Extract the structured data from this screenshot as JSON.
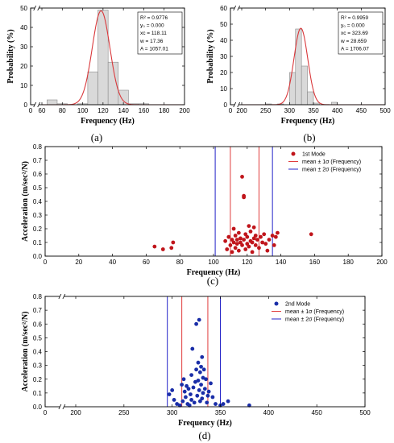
{
  "chart_data": [
    {
      "id": "a",
      "type": "bar",
      "panel_label": "(a)",
      "xlabel": "Frequency (Hz)",
      "ylabel": "Probability (%)",
      "xlim": [
        0,
        200
      ],
      "ylim": [
        0,
        50
      ],
      "xticks": [
        0,
        60,
        80,
        100,
        120,
        140,
        160,
        180,
        200
      ],
      "yticks": [
        0,
        10,
        20,
        30,
        40,
        50
      ],
      "axis_break": true,
      "bin_width": 10,
      "bins": [
        {
          "x": 70,
          "value": 2.5
        },
        {
          "x": 80,
          "value": 0.5
        },
        {
          "x": 100,
          "value": 0.5
        },
        {
          "x": 110,
          "value": 17
        },
        {
          "x": 120,
          "value": 49
        },
        {
          "x": 130,
          "value": 22
        },
        {
          "x": 140,
          "value": 7.5
        },
        {
          "x": 150,
          "value": 0.5
        },
        {
          "x": 160,
          "value": 0.5
        }
      ],
      "fit": {
        "y0": 0,
        "xc": 118.11,
        "w": 17.36,
        "A": 1057.01
      },
      "stats": [
        "R² = 0.9776",
        "y₀ = 0.000",
        "xc = 118.11",
        "w = 17.36",
        "A = 1057.01"
      ]
    },
    {
      "id": "b",
      "type": "bar",
      "panel_label": "(b)",
      "xlabel": "Frequency (Hz)",
      "ylabel": "Probability (%)",
      "xlim": [
        0,
        500
      ],
      "ylim": [
        0,
        60
      ],
      "xticks": [
        0,
        200,
        250,
        300,
        350,
        400,
        450,
        500
      ],
      "yticks": [
        0,
        10,
        20,
        30,
        40,
        50,
        60
      ],
      "axis_break": true,
      "bin_width": 12.5,
      "bins": [
        {
          "x": 256.25,
          "value": 0.5
        },
        {
          "x": 281.25,
          "value": 0.5
        },
        {
          "x": 306.25,
          "value": 20
        },
        {
          "x": 318.75,
          "value": 47
        },
        {
          "x": 331.25,
          "value": 24
        },
        {
          "x": 343.75,
          "value": 8
        },
        {
          "x": 356.25,
          "value": 1
        },
        {
          "x": 393.75,
          "value": 1.5
        }
      ],
      "fit": {
        "y0": 0,
        "xc": 323.69,
        "w": 28.659,
        "A": 1706.07
      },
      "stats": [
        "R² = 0.9959",
        "y₀ = 0.000",
        "xc = 323.69",
        "w = 28.659",
        "A = 1706.07"
      ]
    },
    {
      "id": "c",
      "type": "scatter",
      "panel_label": "(c)",
      "xlabel": "Frequency (Hz)",
      "ylabel": "Acceleration (m/sec²/N)",
      "xlim": [
        0,
        200
      ],
      "ylim": [
        0,
        0.8
      ],
      "xticks": [
        0,
        20,
        40,
        60,
        80,
        100,
        120,
        140,
        160,
        180,
        200
      ],
      "yticks": [
        0,
        0.1,
        0.2,
        0.3,
        0.4,
        0.5,
        0.6,
        0.7,
        0.8
      ],
      "ytick_labels": [
        "0.0",
        "0.1",
        "0.2",
        "0.3",
        "0.4",
        "0.5",
        "0.6",
        "0.7",
        "0.8"
      ],
      "legend": [
        {
          "kind": "marker",
          "label": "1st Mode",
          "color": "#c0151b"
        },
        {
          "kind": "line",
          "label": "mean ± 1σ (Frequency)",
          "color": "#e03c3c"
        },
        {
          "kind": "line",
          "label": "mean ± 2σ (Frequency)",
          "color": "#2323c8"
        }
      ],
      "vlines": [
        {
          "x": 101,
          "color": "#2323c8"
        },
        {
          "x": 110,
          "color": "#e03c3c"
        },
        {
          "x": 127,
          "color": "#e03c3c"
        },
        {
          "x": 135,
          "color": "#2323c8"
        }
      ],
      "points": [
        [
          65,
          0.07
        ],
        [
          70,
          0.05
        ],
        [
          75,
          0.06
        ],
        [
          76,
          0.1
        ],
        [
          107,
          0.11
        ],
        [
          108,
          0.05
        ],
        [
          109,
          0.14
        ],
        [
          110,
          0.08
        ],
        [
          111,
          0.12
        ],
        [
          111,
          0.03
        ],
        [
          112,
          0.1
        ],
        [
          112,
          0.2
        ],
        [
          113,
          0.06
        ],
        [
          113,
          0.15
        ],
        [
          114,
          0.09
        ],
        [
          114,
          0.12
        ],
        [
          115,
          0.04
        ],
        [
          115,
          0.17
        ],
        [
          116,
          0.1
        ],
        [
          116,
          0.13
        ],
        [
          117,
          0.58
        ],
        [
          117,
          0.08
        ],
        [
          118,
          0.43
        ],
        [
          118,
          0.44
        ],
        [
          118,
          0.12
        ],
        [
          119,
          0.16
        ],
        [
          119,
          0.05
        ],
        [
          120,
          0.09
        ],
        [
          120,
          0.14
        ],
        [
          121,
          0.22
        ],
        [
          121,
          0.07
        ],
        [
          122,
          0.11
        ],
        [
          122,
          0.18
        ],
        [
          123,
          0.1
        ],
        [
          123,
          0.03
        ],
        [
          124,
          0.13
        ],
        [
          124,
          0.21
        ],
        [
          125,
          0.08
        ],
        [
          125,
          0.15
        ],
        [
          126,
          0.12
        ],
        [
          127,
          0.06
        ],
        [
          128,
          0.14
        ],
        [
          129,
          0.1
        ],
        [
          130,
          0.16
        ],
        [
          131,
          0.09
        ],
        [
          132,
          0.04
        ],
        [
          133,
          0.12
        ],
        [
          135,
          0.15
        ],
        [
          136,
          0.08
        ],
        [
          137,
          0.14
        ],
        [
          138,
          0.17
        ],
        [
          158,
          0.16
        ]
      ]
    },
    {
      "id": "d",
      "type": "scatter",
      "panel_label": "(d)",
      "xlabel": "Frequency (Hz)",
      "ylabel": "Acceleration (m/sec²/N)",
      "xlim": [
        0,
        500
      ],
      "ylim": [
        0,
        0.8
      ],
      "xticks": [
        0,
        200,
        250,
        300,
        350,
        400,
        450,
        500
      ],
      "yticks": [
        0,
        0.1,
        0.2,
        0.3,
        0.4,
        0.5,
        0.6,
        0.7,
        0.8
      ],
      "ytick_labels": [
        "0.0",
        "0.1",
        "0.2",
        "0.3",
        "0.4",
        "0.5",
        "0.6",
        "0.7",
        "0.8"
      ],
      "axis_break": true,
      "legend": [
        {
          "kind": "marker",
          "label": "2nd Mode",
          "color": "#1a2ea8"
        },
        {
          "kind": "line",
          "label": "mean ± 1σ (Frequency)",
          "color": "#e03c3c"
        },
        {
          "kind": "line",
          "label": "mean ± 2σ (Frequency)",
          "color": "#2323c8"
        }
      ],
      "vlines": [
        {
          "x": 295,
          "color": "#2323c8"
        },
        {
          "x": 310,
          "color": "#e03c3c"
        },
        {
          "x": 337,
          "color": "#e03c3c"
        },
        {
          "x": 350,
          "color": "#2323c8"
        }
      ],
      "points": [
        [
          297,
          0.09
        ],
        [
          300,
          0.12
        ],
        [
          302,
          0.05
        ],
        [
          305,
          0.02
        ],
        [
          308,
          0.01
        ],
        [
          310,
          0.16
        ],
        [
          311,
          0.04
        ],
        [
          312,
          0.2
        ],
        [
          313,
          0.11
        ],
        [
          314,
          0.07
        ],
        [
          315,
          0.15
        ],
        [
          316,
          0.02
        ],
        [
          317,
          0.13
        ],
        [
          318,
          0.01
        ],
        [
          319,
          0.09
        ],
        [
          320,
          0.23
        ],
        [
          320,
          0.05
        ],
        [
          321,
          0.42
        ],
        [
          322,
          0.14
        ],
        [
          323,
          0.03
        ],
        [
          324,
          0.18
        ],
        [
          325,
          0.6
        ],
        [
          325,
          0.27
        ],
        [
          326,
          0.08
        ],
        [
          327,
          0.32
        ],
        [
          327,
          0.19
        ],
        [
          328,
          0.63
        ],
        [
          328,
          0.12
        ],
        [
          329,
          0.25
        ],
        [
          329,
          0.04
        ],
        [
          330,
          0.29
        ],
        [
          330,
          0.16
        ],
        [
          331,
          0.36
        ],
        [
          331,
          0.06
        ],
        [
          332,
          0.21
        ],
        [
          332,
          0.1
        ],
        [
          333,
          0.27
        ],
        [
          334,
          0.13
        ],
        [
          335,
          0.2
        ],
        [
          336,
          0.03
        ],
        [
          337,
          0.08
        ],
        [
          338,
          0.11
        ],
        [
          340,
          0.17
        ],
        [
          342,
          0.07
        ],
        [
          345,
          0.02
        ],
        [
          350,
          0.01
        ],
        [
          353,
          0.02
        ],
        [
          358,
          0.04
        ],
        [
          380,
          0.01
        ]
      ]
    }
  ]
}
